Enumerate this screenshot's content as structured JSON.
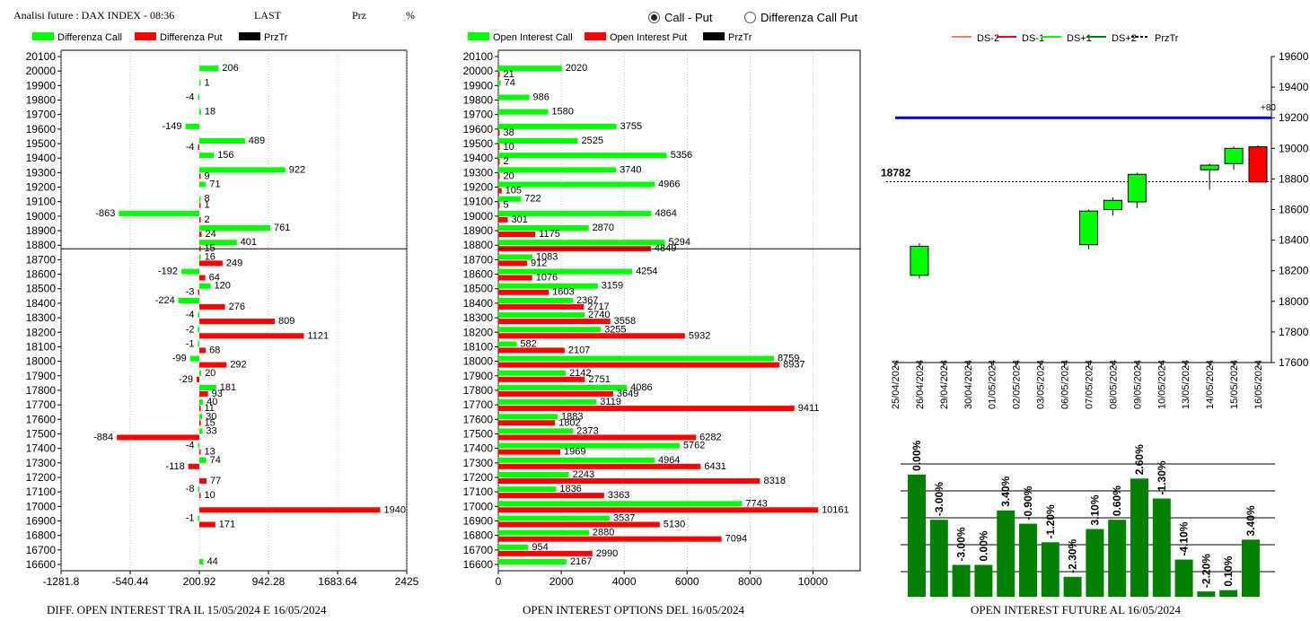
{
  "header": {
    "title": "Analisi future : DAX INDEX - 08:36",
    "last_label": "LAST",
    "prz_label": "Prz",
    "pct_label": "%",
    "radio_call_put": "Call - Put",
    "radio_diff": "Differenza Call Put",
    "selected_radio": "call_put"
  },
  "colors": {
    "call": "#00ff00",
    "put": "#ff0000",
    "prztr": "#000000",
    "ds2": "#ff8060",
    "ds1": "#ff0000",
    "ds_plus1": "#00ff00",
    "ds_plus2": "#008000",
    "blue_line": "#0000cc",
    "bar_green": "#008000"
  },
  "chart_data": [
    {
      "id": "diff",
      "type": "bar",
      "orientation": "horizontal",
      "title": "DIFF. OPEN INTEREST TRA IL 15/05/2024 E 16/05/2024",
      "legend": [
        "Differenza Call",
        "Differenza Put",
        "PrzTr"
      ],
      "categories": [
        "20100",
        "20000",
        "19900",
        "19800",
        "19700",
        "19600",
        "19500",
        "19400",
        "19300",
        "19200",
        "19100",
        "19000",
        "18900",
        "18800",
        "18700",
        "18600",
        "18500",
        "18400",
        "18300",
        "18200",
        "18100",
        "18000",
        "17900",
        "17800",
        "17700",
        "17600",
        "17500",
        "17400",
        "17300",
        "17200",
        "17100",
        "17000",
        "16900",
        "16800",
        "16700",
        "16600"
      ],
      "series": [
        {
          "name": "Differenza Call",
          "values": [
            null,
            206,
            1,
            -4,
            18,
            -149,
            489,
            156,
            922,
            71,
            8,
            -863,
            761,
            401,
            16,
            -192,
            120,
            -224,
            -4,
            -2,
            -1,
            -99,
            20,
            181,
            40,
            30,
            33,
            -4,
            74,
            null,
            -8,
            null,
            -1,
            null,
            null,
            44
          ]
        },
        {
          "name": "Differenza Put",
          "values": [
            null,
            null,
            null,
            null,
            null,
            null,
            -4,
            null,
            9,
            null,
            1,
            2,
            24,
            15,
            249,
            64,
            -3,
            276,
            809,
            1121,
            68,
            292,
            -29,
            93,
            11,
            15,
            -884,
            13,
            -118,
            77,
            10,
            1940,
            171,
            null,
            null,
            null
          ]
        }
      ],
      "prztr_level": "18800",
      "xticks": [
        "-1281.8",
        "-540.44",
        "200.92",
        "942.28",
        "1683.64",
        "2425"
      ],
      "xlim": [
        -1281.8,
        2425
      ]
    },
    {
      "id": "oi",
      "type": "bar",
      "orientation": "horizontal",
      "title": "OPEN INTEREST OPTIONS DEL 16/05/2024",
      "legend": [
        "Open Interest Call",
        "Open Interest Put",
        "PrzTr"
      ],
      "categories": [
        "20100",
        "20000",
        "19900",
        "19800",
        "19700",
        "19600",
        "19500",
        "19400",
        "19300",
        "19200",
        "19100",
        "19000",
        "18900",
        "18800",
        "18700",
        "18600",
        "18500",
        "18400",
        "18300",
        "18200",
        "18100",
        "18000",
        "17900",
        "17800",
        "17700",
        "17600",
        "17500",
        "17400",
        "17300",
        "17200",
        "17100",
        "17000",
        "16900",
        "16800",
        "16700",
        "16600"
      ],
      "series": [
        {
          "name": "Open Interest Call",
          "values": [
            null,
            2020,
            74,
            986,
            1580,
            3755,
            2525,
            5356,
            3740,
            4966,
            722,
            4864,
            2870,
            5294,
            1083,
            4254,
            3159,
            2367,
            2740,
            3255,
            582,
            8759,
            2142,
            4086,
            3119,
            1883,
            2373,
            5762,
            4964,
            2243,
            1836,
            7743,
            3537,
            2880,
            954,
            2167
          ]
        },
        {
          "name": "Open Interest Put",
          "values": [
            null,
            21,
            null,
            null,
            null,
            38,
            10,
            2,
            20,
            105,
            5,
            301,
            1175,
            4849,
            912,
            1076,
            1603,
            2717,
            3558,
            5932,
            2107,
            8937,
            2751,
            3649,
            9411,
            1802,
            6282,
            1969,
            6431,
            8318,
            3363,
            10161,
            5130,
            7094,
            2990,
            null
          ]
        }
      ],
      "prztr_level": "18800",
      "xticks": [
        "0",
        "2000",
        "4000",
        "6000",
        "8000",
        "10000"
      ],
      "xlim": [
        0,
        11500
      ]
    },
    {
      "id": "candles",
      "type": "candlestick",
      "legend": [
        "DS-2",
        "DS-1",
        "DS+1",
        "DS+2",
        "PrzTr"
      ],
      "x": [
        "25/04/2024",
        "26/04/2024",
        "29/04/2024",
        "30/04/2024",
        "01/05/2024",
        "02/05/2024",
        "03/05/2024",
        "06/05/2024",
        "07/05/2024",
        "08/05/2024",
        "09/05/2024",
        "10/05/2024",
        "13/05/2024",
        "14/05/2024",
        "15/05/2024",
        "16/05/2024"
      ],
      "ohlc": [
        null,
        {
          "o": 18170,
          "h": 18380,
          "l": 18150,
          "c": 18360
        },
        null,
        null,
        null,
        null,
        null,
        null,
        {
          "o": 18370,
          "h": 18600,
          "l": 18340,
          "c": 18590
        },
        {
          "o": 18600,
          "h": 18680,
          "l": 18560,
          "c": 18660
        },
        {
          "o": 18650,
          "h": 18840,
          "l": 18610,
          "c": 18830
        },
        null,
        null,
        {
          "o": 18860,
          "h": 18900,
          "l": 18730,
          "c": 18890
        },
        {
          "o": 18900,
          "h": 19010,
          "l": 18860,
          "c": 19000
        },
        {
          "o": 19010,
          "h": 19020,
          "l": 18780,
          "c": 18780
        }
      ],
      "yticks": [
        "19600",
        "19400",
        "19200",
        "19000",
        "18800",
        "18600",
        "18400",
        "18200",
        "18000",
        "17800",
        "17600"
      ],
      "ylim": [
        17600,
        19600
      ],
      "blue_line": 19200,
      "blue_line_label": "+80",
      "prztr": 18782,
      "prztr_label": "18782"
    },
    {
      "id": "fut_oi",
      "type": "bar",
      "title": "OPEN INTEREST FUTURE AL 16/05/2024",
      "labels": [
        "0.00%",
        "-3.00%",
        "-3.00%",
        "0.00%",
        "3.40%",
        "-0.90%",
        "-1.20%",
        "-2.30%",
        "3.10%",
        "0.60%",
        "2.60%",
        "-1.30%",
        "-4.10%",
        "-2.20%",
        "0.10%",
        "3.40%"
      ],
      "values": [
        0.92,
        0.58,
        0.24,
        0.24,
        0.65,
        0.55,
        0.41,
        0.15,
        0.51,
        0.58,
        0.89,
        0.74,
        0.28,
        0.04,
        0.05,
        0.43
      ]
    }
  ]
}
